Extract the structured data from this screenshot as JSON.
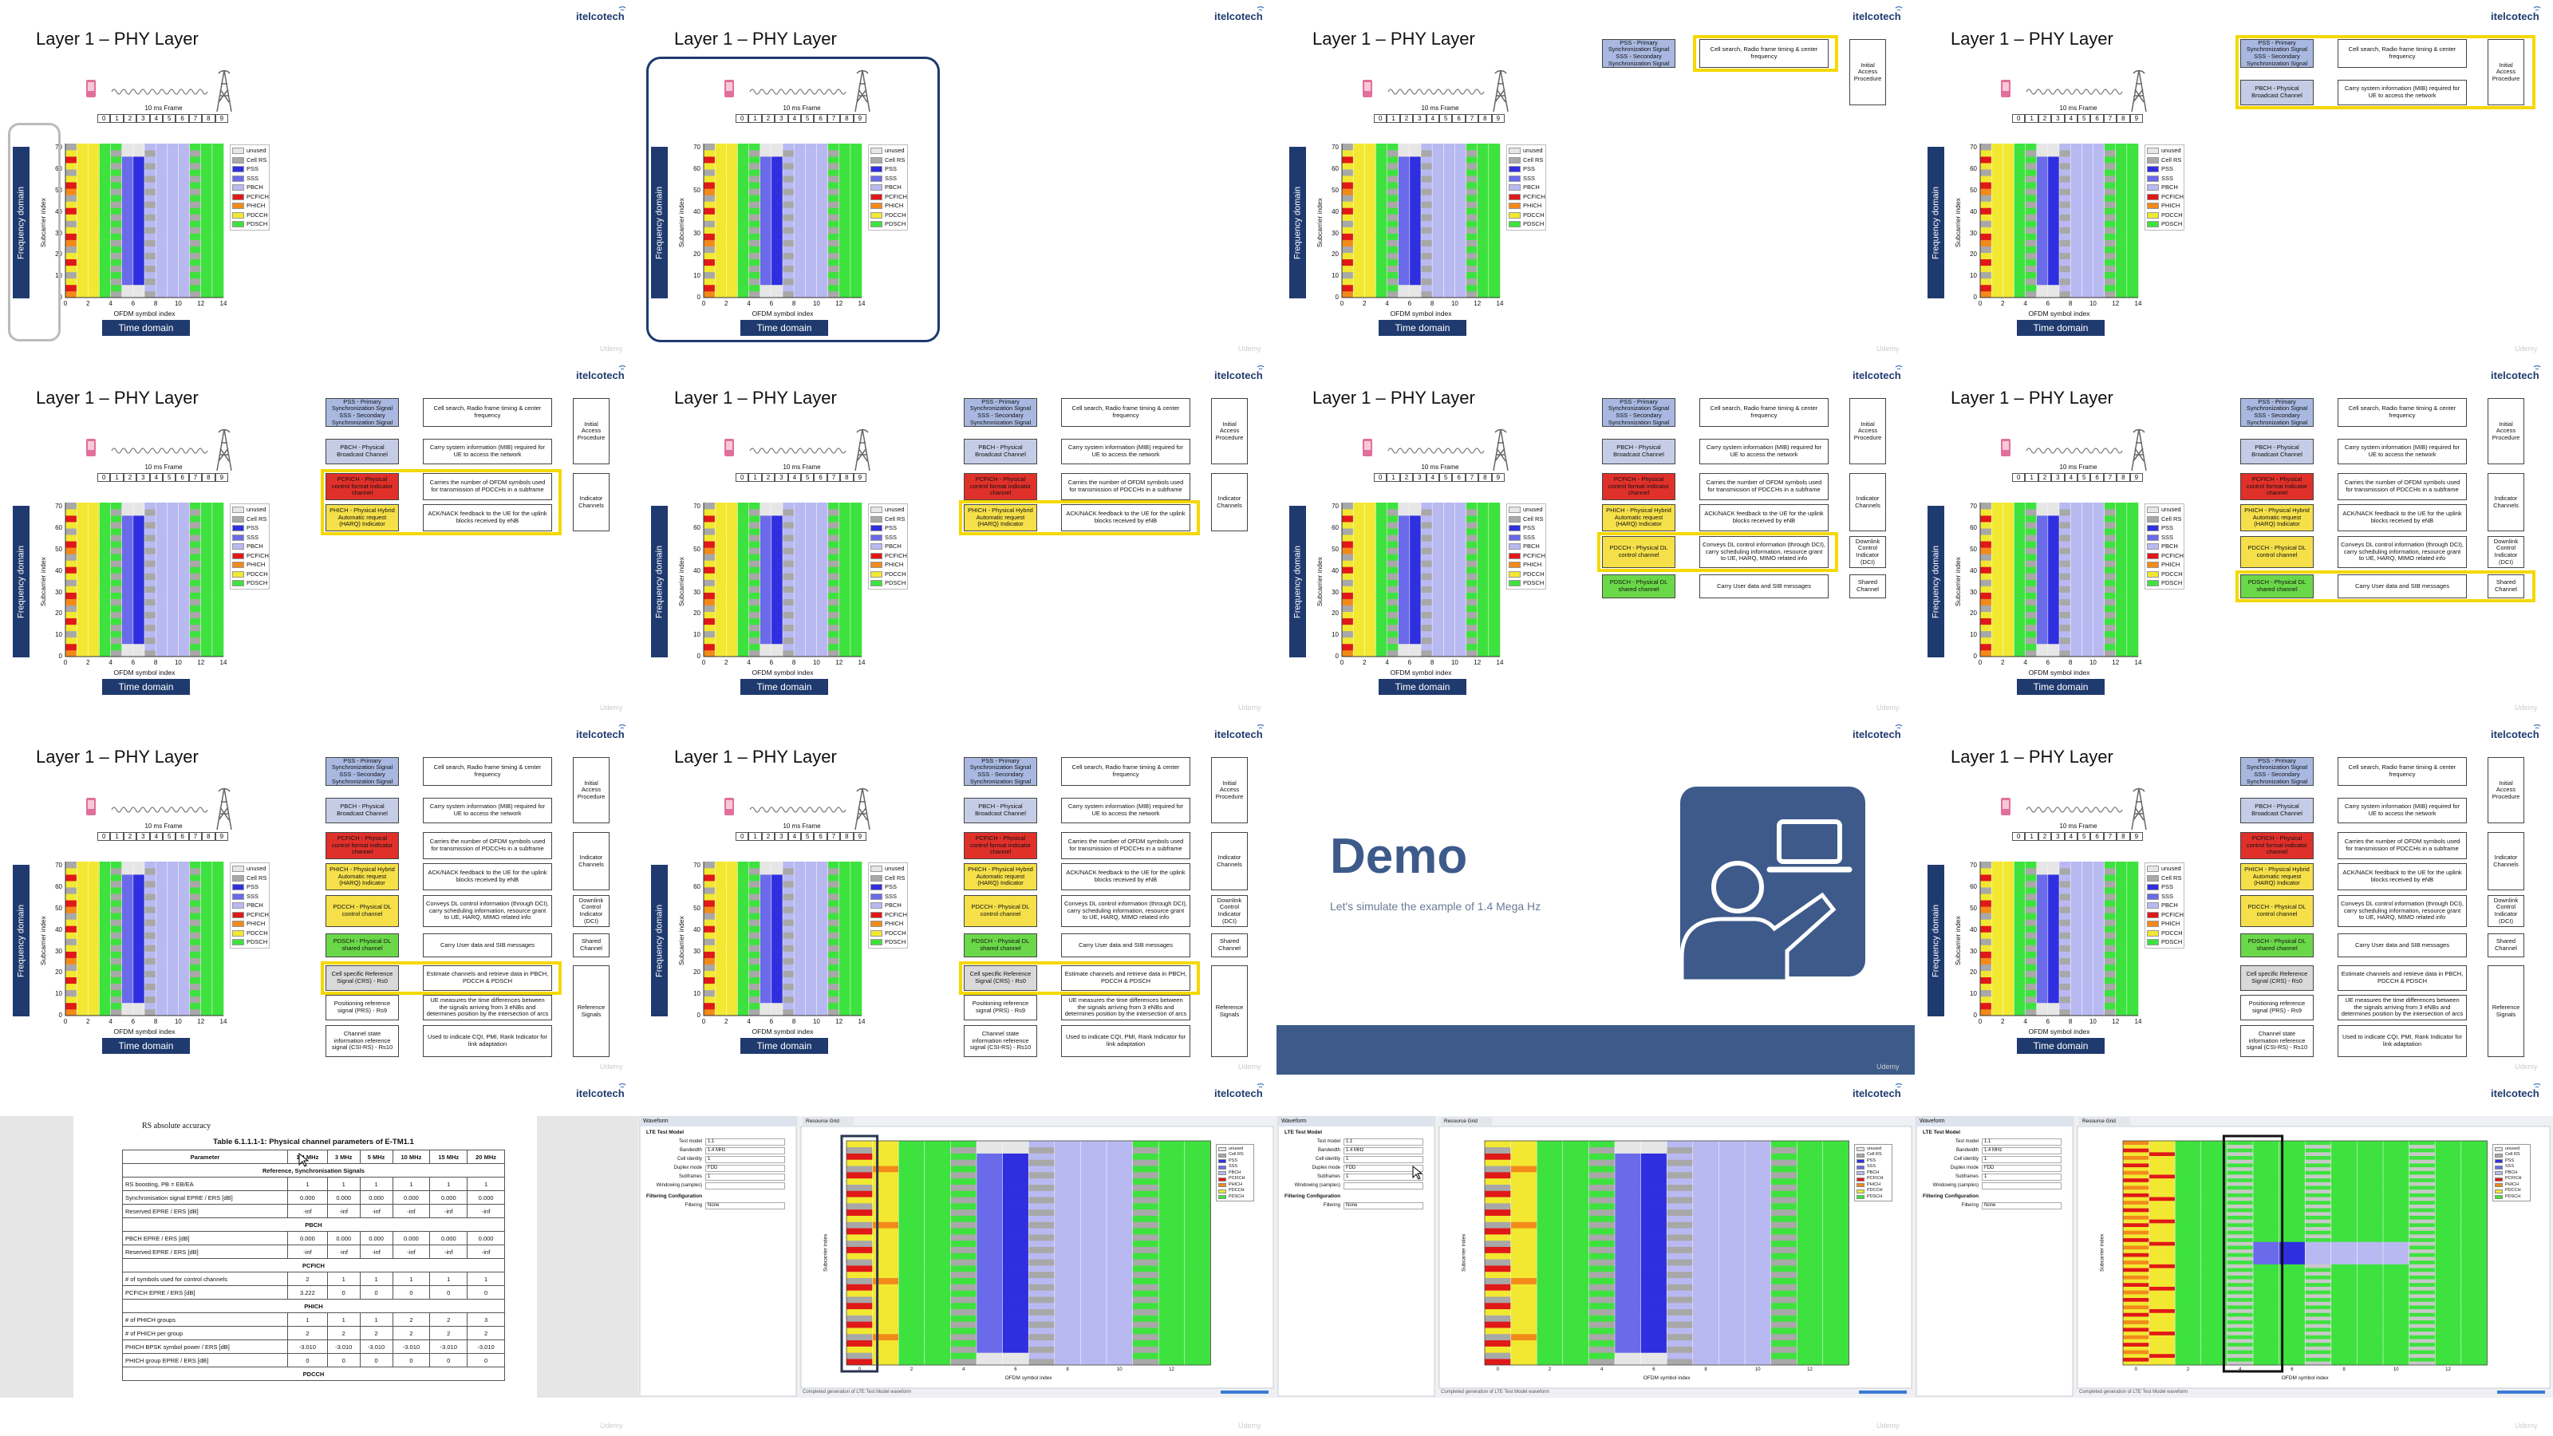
{
  "slide_title": "Layer 1 – PHY Layer",
  "logo": "itelcotech",
  "watermark": "Udemy",
  "phy_diagram": {
    "frame_label": "10 ms Frame",
    "subframes": [
      "0",
      "1",
      "2",
      "3",
      "4",
      "5",
      "6",
      "7",
      "8",
      "9"
    ],
    "legend": [
      "unused",
      "Cell RS",
      "PSS",
      "SSS",
      "PBCH",
      "PCFICH",
      "PHICH",
      "PDCCH",
      "PDSCH"
    ],
    "y_label": "Subcarrier index",
    "x_label": "OFDM symbol index",
    "yticks": [
      "0",
      "10",
      "20",
      "30",
      "40",
      "50",
      "60",
      "70"
    ],
    "xticks": [
      "0",
      "2",
      "4",
      "6",
      "8",
      "10",
      "12",
      "14"
    ],
    "frequency_label": "Frequency domain",
    "time_label": "Time domain"
  },
  "channel_table": {
    "rows": [
      {
        "name": "PSS - Primary Synchronization Signal SSS - Secondary Synchronization Signal",
        "description": "Cell search, Radio frame timing & center frequency"
      },
      {
        "name": "PBCH - Physical Broadcast Channel",
        "description": "Carry system information (MIB) required for UE to access the network"
      },
      {
        "name": "PCFICH - Physical control format indicator channel",
        "description": "Carries the number of OFDM symbols used for transmission of PDCCHs in a subframe"
      },
      {
        "name": "PHICH - Physical Hybrid Automatic request (HARQ) Indicator",
        "description": "ACK/NACK feedback to the UE for the uplink blocks received by eNB"
      },
      {
        "name": "PDCCH - Physical DL control channel",
        "description": "Conveys DL control information (through DCI), carry scheduling information, resource grant to UE, HARQ, MIMO related info"
      },
      {
        "name": "PDSCH - Physical DL shared channel",
        "description": "Carry User data and SIB messages"
      },
      {
        "name": "Cell specific Reference Signal (CRS) - Rs0",
        "description": "Estimate channels and retrieve data in PBCH, PDCCH & PDSCH"
      },
      {
        "name": "Positioning reference signal (PRS) - Rs9",
        "description": "UE measures the time differences between the signals arriving from 3 eNBs and determines position by the intersection of arcs"
      },
      {
        "name": "Channel state information reference signal (CSI-RS) - Rs10",
        "description": "Used to indicate CQI, PMI, Rank Indicator for link adaptation"
      }
    ],
    "groups": [
      "Initial Access Procedure",
      "Indicator Channels",
      "Downlink Control Indicator (DCI)",
      "Shared Channel",
      "Reference Signals"
    ]
  },
  "demo": {
    "title": "Demo",
    "subtitle": "Let's simulate the example of 1.4 Mega Hz"
  },
  "spec_document": {
    "heading": "RS absolute accuracy",
    "caption": "Table 6.1.1.1-1: Physical channel parameters of E-TM1.1",
    "header": [
      "Parameter",
      "1.4 MHz",
      "3 MHz",
      "5 MHz",
      "10 MHz",
      "15 MHz",
      "20 MHz"
    ],
    "rows": [
      [
        "Reference, Synchronisation Signals"
      ],
      [
        "RS boosting, PB = EB/EA",
        "1",
        "1",
        "1",
        "1",
        "1",
        "1"
      ],
      [
        "Synchronisation signal EPRE / ERS [dB]",
        "0.000",
        "0.000",
        "0.000",
        "0.000",
        "0.000",
        "0.000"
      ],
      [
        "Reserved EPRE / ERS [dB]",
        "-inf",
        "-inf",
        "-inf",
        "-inf",
        "-inf",
        "-inf"
      ],
      [
        "PBCH"
      ],
      [
        "PBCH EPRE / ERS [dB]",
        "0.000",
        "0.000",
        "0.000",
        "0.000",
        "0.000",
        "0.000"
      ],
      [
        "Reserved EPRE / ERS [dB]",
        "-inf",
        "-inf",
        "-inf",
        "-inf",
        "-inf",
        "-inf"
      ],
      [
        "PCFICH"
      ],
      [
        "# of symbols used for control channels",
        "2",
        "1",
        "1",
        "1",
        "1",
        "1"
      ],
      [
        "PCFICH EPRE / ERS [dB]",
        "3.222",
        "0",
        "0",
        "0",
        "0",
        "0"
      ],
      [
        "PHICH"
      ],
      [
        "# of PHICH groups",
        "1",
        "1",
        "1",
        "2",
        "2",
        "3"
      ],
      [
        "# of PHICH per group",
        "2",
        "2",
        "2",
        "2",
        "2",
        "2"
      ],
      [
        "PHICH BPSK symbol power / ERS [dB]",
        "-3.010",
        "-3.010",
        "-3.010",
        "-3.010",
        "-3.010",
        "-3.010"
      ],
      [
        "PHICH group EPRE / ERS [dB]",
        "0",
        "0",
        "0",
        "0",
        "0",
        "0"
      ],
      [
        "PDCCH"
      ]
    ]
  },
  "waveform_app": {
    "panel_title": "Waveform",
    "section": "LTE Test Model",
    "fields": [
      {
        "label": "Test model",
        "value": "1.1"
      },
      {
        "label": "Bandwidth",
        "value": "1.4 MHz"
      },
      {
        "label": "Cell identity",
        "value": "1"
      },
      {
        "label": "Duplex mode",
        "value": "FDD"
      },
      {
        "label": "Subframes",
        "value": "1"
      },
      {
        "label": "Windowing (samples)"
      }
    ],
    "filter_section": "Filtering Configuration",
    "filter_field": {
      "label": "Filtering",
      "value": "None"
    },
    "plot_tab": "Resource Grid",
    "y_label": "Subcarrier index",
    "x_label": "OFDM symbol index",
    "xticks": [
      "0",
      "2",
      "4",
      "6",
      "8",
      "10",
      "12"
    ],
    "status": "Completed generation of LTE Test Model waveform"
  }
}
